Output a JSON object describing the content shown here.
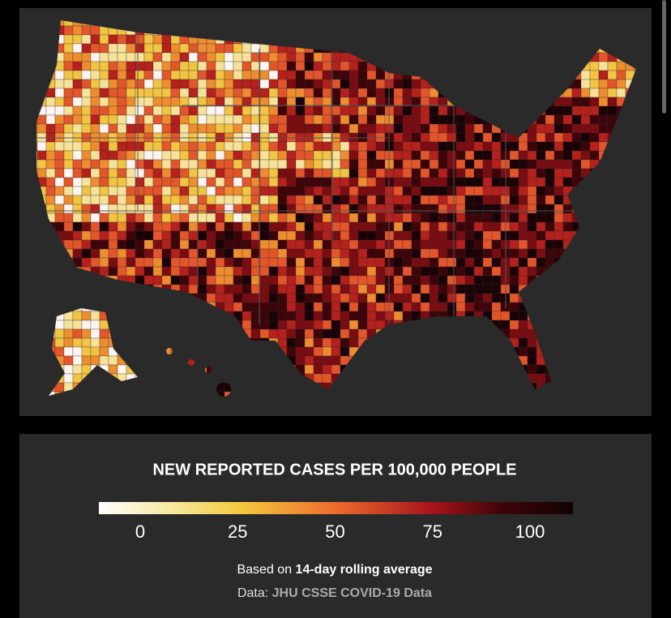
{
  "legend": {
    "title": "NEW REPORTED CASES PER 100,000 PEOPLE",
    "ticks": [
      0,
      25,
      50,
      75,
      100
    ]
  },
  "note": {
    "prefix": "Based on ",
    "emphasis": "14-day rolling average"
  },
  "source": {
    "prefix": "Data: ",
    "name": "JHU CSSE COVID-19 Data"
  }
}
